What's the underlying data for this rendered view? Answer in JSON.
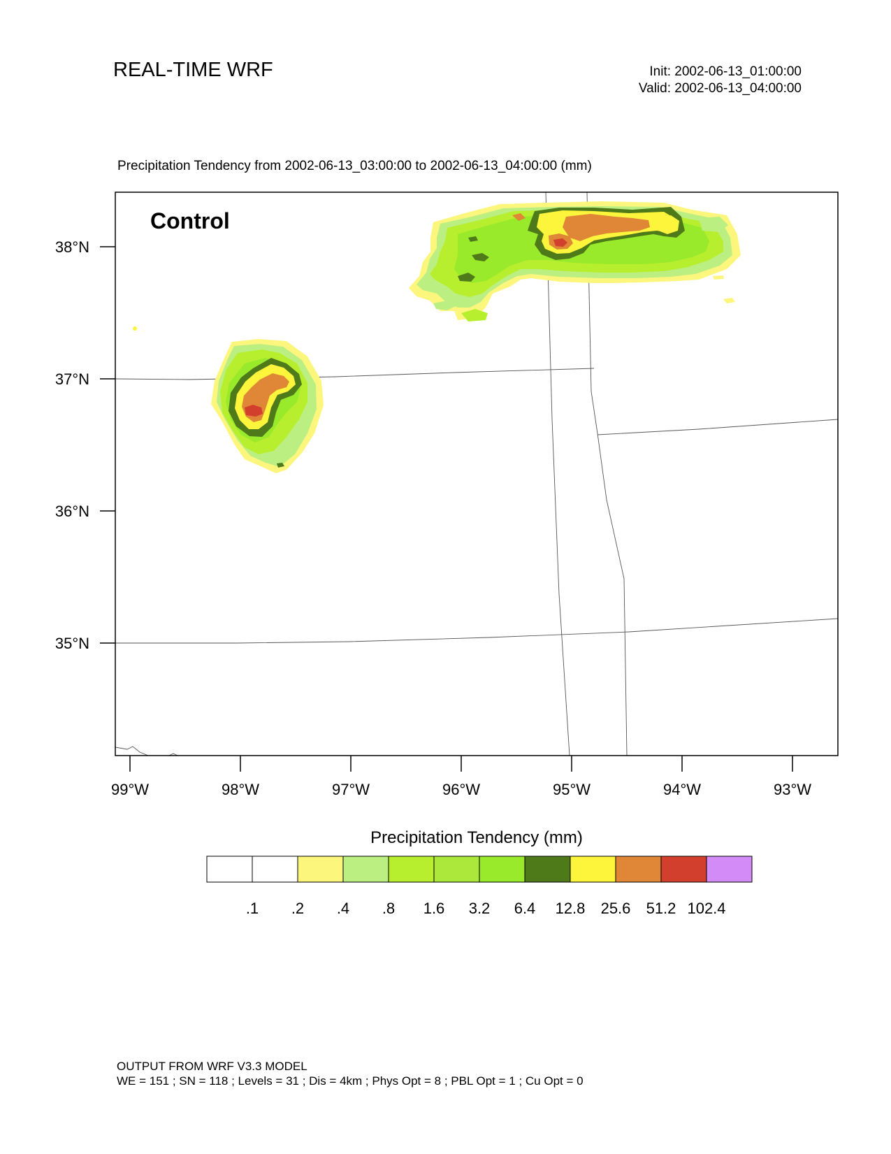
{
  "header": {
    "title": "REAL-TIME WRF",
    "init": "Init: 2002-06-13_01:00:00",
    "valid": "Valid: 2002-06-13_04:00:00"
  },
  "plot": {
    "subtitle": "Precipitation Tendency from 2002-06-13_03:00:00 to 2002-06-13_04:00:00   (mm)",
    "panel_label": "Control",
    "lat_labels": [
      "38°N",
      "37°N",
      "36°N",
      "35°N"
    ],
    "lon_labels": [
      "99°W",
      "98°W",
      "97°W",
      "96°W",
      "95°W",
      "94°W",
      "93°W"
    ]
  },
  "colorbar": {
    "title": "Precipitation Tendency  (mm)",
    "colors": [
      "#ffffff",
      "#ffffff",
      "#fcf67d",
      "#bcef82",
      "#b7ef2e",
      "#abe83b",
      "#98ea2a",
      "#4f7a1a",
      "#fdf53c",
      "#df8637",
      "#d23f2d",
      "#d38cf7"
    ],
    "levels": [
      ".1",
      ".2",
      ".4",
      ".8",
      "1.6",
      "3.2",
      "6.4",
      "12.8",
      "25.6",
      "51.2",
      "102.4"
    ]
  },
  "footer": {
    "line1": "OUTPUT FROM WRF V3.3 MODEL",
    "line2": "WE = 151 ; SN = 118 ; Levels = 31 ; Dis = 4km ; Phys Opt = 8 ; PBL Opt = 1 ; Cu Opt = 0"
  }
}
